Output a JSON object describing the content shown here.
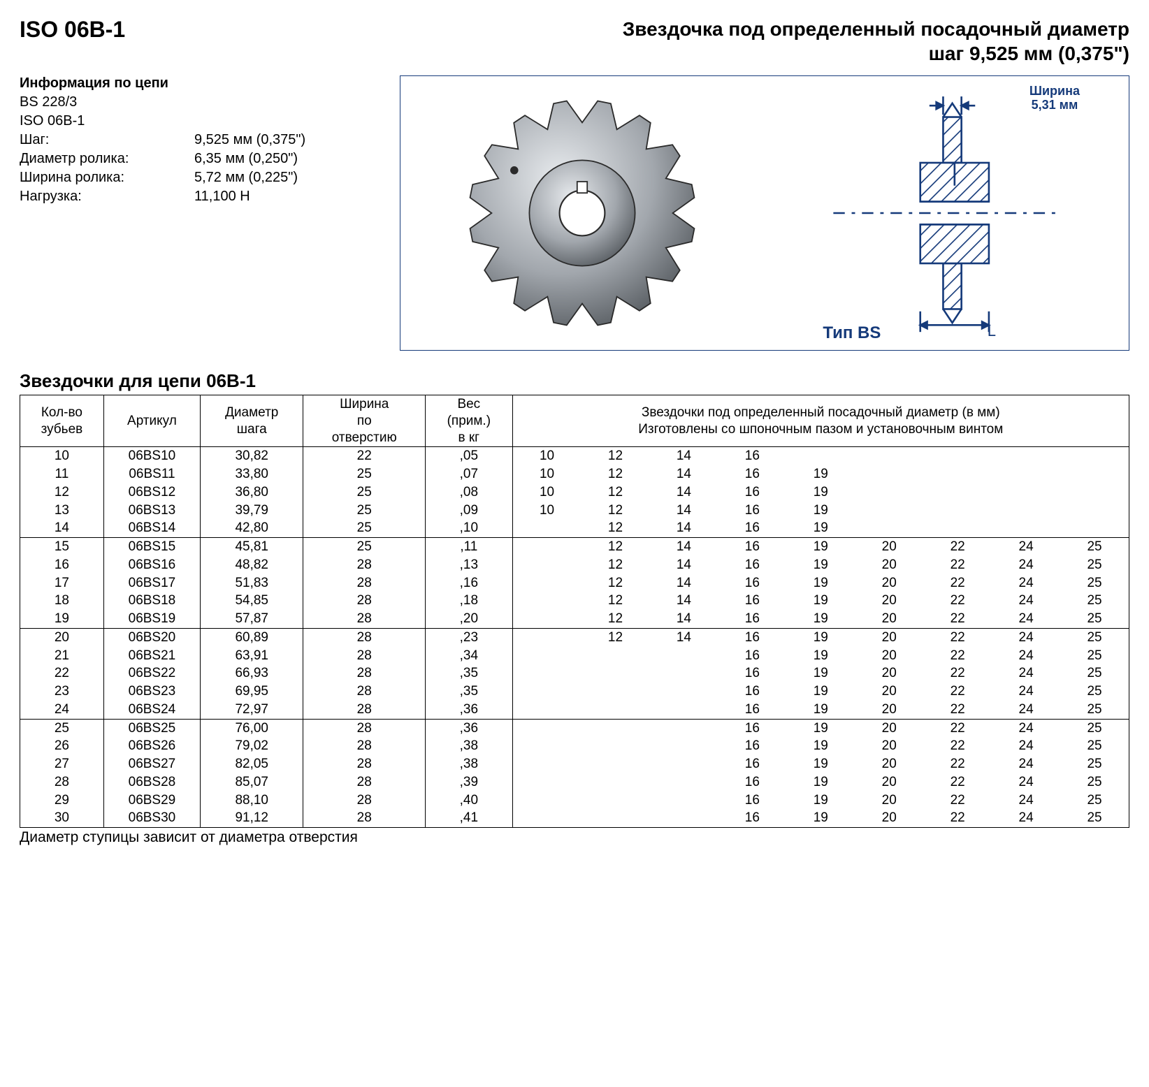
{
  "header": {
    "left": "ISO 06B-1",
    "right_line1": "Звездочка под определенный посадочный диаметр",
    "right_line2": "шаг 9,525 мм (0,375\")"
  },
  "chain_info": {
    "title": "Информация по цепи",
    "lines": [
      "BS 228/3",
      "ISO 06B-1"
    ],
    "kv": [
      {
        "k": "Шаг:",
        "v": "9,525 мм (0,375\")"
      },
      {
        "k": "Диаметр ролика:",
        "v": "6,35 мм (0,250\")"
      },
      {
        "k": "Ширина ролика:",
        "v": "5,72 мм (0,225\")"
      },
      {
        "k": "Нагрузка:",
        "v": "11,100 Н"
      }
    ]
  },
  "figure": {
    "tip": "Тип BS",
    "width_label_top": "Ширина",
    "width_label_bot": "5,31 мм",
    "L_label": "L",
    "sprocket": {
      "fill_hub": "#8a8f95",
      "fill_tooth": "#a2a7ad",
      "stroke": "#2a2a2a",
      "teeth": 16
    },
    "schematic": {
      "stroke": "#153a7a",
      "hatch": "#153a7a"
    }
  },
  "table": {
    "title": "Звездочки для цепи 06B-1",
    "columns": {
      "teeth": "Кол-во\nзубьев",
      "article": "Артикул",
      "pitch_dia": "Диаметр\nшага",
      "bore_width": "Ширина\nпо\nотверстию",
      "weight": "Вес\n(прим.)\nв кг",
      "bores_head1": "Звездочки под определенный посадочный диаметр (в мм)",
      "bores_head2": "Изготовлены со шпоночным пазом и установочным винтом"
    },
    "bore_cols": [
      "10",
      "12",
      "14",
      "16",
      "19",
      "20",
      "22",
      "24",
      "25"
    ],
    "groups": [
      [
        {
          "t": "10",
          "a": "06BS10",
          "pd": "30,82",
          "bw": "22",
          "w": ",05",
          "b": [
            "10",
            "12",
            "14",
            "16",
            "",
            "",
            "",
            "",
            ""
          ]
        },
        {
          "t": "11",
          "a": "06BS11",
          "pd": "33,80",
          "bw": "25",
          "w": ",07",
          "b": [
            "10",
            "12",
            "14",
            "16",
            "19",
            "",
            "",
            "",
            ""
          ]
        },
        {
          "t": "12",
          "a": "06BS12",
          "pd": "36,80",
          "bw": "25",
          "w": ",08",
          "b": [
            "10",
            "12",
            "14",
            "16",
            "19",
            "",
            "",
            "",
            ""
          ]
        },
        {
          "t": "13",
          "a": "06BS13",
          "pd": "39,79",
          "bw": "25",
          "w": ",09",
          "b": [
            "10",
            "12",
            "14",
            "16",
            "19",
            "",
            "",
            "",
            ""
          ]
        },
        {
          "t": "14",
          "a": "06BS14",
          "pd": "42,80",
          "bw": "25",
          "w": ",10",
          "b": [
            "",
            "12",
            "14",
            "16",
            "19",
            "",
            "",
            "",
            ""
          ]
        }
      ],
      [
        {
          "t": "15",
          "a": "06BS15",
          "pd": "45,81",
          "bw": "25",
          "w": ",11",
          "b": [
            "",
            "12",
            "14",
            "16",
            "19",
            "20",
            "22",
            "24",
            "25"
          ]
        },
        {
          "t": "16",
          "a": "06BS16",
          "pd": "48,82",
          "bw": "28",
          "w": ",13",
          "b": [
            "",
            "12",
            "14",
            "16",
            "19",
            "20",
            "22",
            "24",
            "25"
          ]
        },
        {
          "t": "17",
          "a": "06BS17",
          "pd": "51,83",
          "bw": "28",
          "w": ",16",
          "b": [
            "",
            "12",
            "14",
            "16",
            "19",
            "20",
            "22",
            "24",
            "25"
          ]
        },
        {
          "t": "18",
          "a": "06BS18",
          "pd": "54,85",
          "bw": "28",
          "w": ",18",
          "b": [
            "",
            "12",
            "14",
            "16",
            "19",
            "20",
            "22",
            "24",
            "25"
          ]
        },
        {
          "t": "19",
          "a": "06BS19",
          "pd": "57,87",
          "bw": "28",
          "w": ",20",
          "b": [
            "",
            "12",
            "14",
            "16",
            "19",
            "20",
            "22",
            "24",
            "25"
          ]
        }
      ],
      [
        {
          "t": "20",
          "a": "06BS20",
          "pd": "60,89",
          "bw": "28",
          "w": ",23",
          "b": [
            "",
            "12",
            "14",
            "16",
            "19",
            "20",
            "22",
            "24",
            "25"
          ]
        },
        {
          "t": "21",
          "a": "06BS21",
          "pd": "63,91",
          "bw": "28",
          "w": ",34",
          "b": [
            "",
            "",
            "",
            "16",
            "19",
            "20",
            "22",
            "24",
            "25"
          ]
        },
        {
          "t": "22",
          "a": "06BS22",
          "pd": "66,93",
          "bw": "28",
          "w": ",35",
          "b": [
            "",
            "",
            "",
            "16",
            "19",
            "20",
            "22",
            "24",
            "25"
          ]
        },
        {
          "t": "23",
          "a": "06BS23",
          "pd": "69,95",
          "bw": "28",
          "w": ",35",
          "b": [
            "",
            "",
            "",
            "16",
            "19",
            "20",
            "22",
            "24",
            "25"
          ]
        },
        {
          "t": "24",
          "a": "06BS24",
          "pd": "72,97",
          "bw": "28",
          "w": ",36",
          "b": [
            "",
            "",
            "",
            "16",
            "19",
            "20",
            "22",
            "24",
            "25"
          ]
        }
      ],
      [
        {
          "t": "25",
          "a": "06BS25",
          "pd": "76,00",
          "bw": "28",
          "w": ",36",
          "b": [
            "",
            "",
            "",
            "16",
            "19",
            "20",
            "22",
            "24",
            "25"
          ]
        },
        {
          "t": "26",
          "a": "06BS26",
          "pd": "79,02",
          "bw": "28",
          "w": ",38",
          "b": [
            "",
            "",
            "",
            "16",
            "19",
            "20",
            "22",
            "24",
            "25"
          ]
        },
        {
          "t": "27",
          "a": "06BS27",
          "pd": "82,05",
          "bw": "28",
          "w": ",38",
          "b": [
            "",
            "",
            "",
            "16",
            "19",
            "20",
            "22",
            "24",
            "25"
          ]
        },
        {
          "t": "28",
          "a": "06BS28",
          "pd": "85,07",
          "bw": "28",
          "w": ",39",
          "b": [
            "",
            "",
            "",
            "16",
            "19",
            "20",
            "22",
            "24",
            "25"
          ]
        },
        {
          "t": "29",
          "a": "06BS29",
          "pd": "88,10",
          "bw": "28",
          "w": ",40",
          "b": [
            "",
            "",
            "",
            "16",
            "19",
            "20",
            "22",
            "24",
            "25"
          ]
        },
        {
          "t": "30",
          "a": "06BS30",
          "pd": "91,12",
          "bw": "28",
          "w": ",41",
          "b": [
            "",
            "",
            "",
            "16",
            "19",
            "20",
            "22",
            "24",
            "25"
          ]
        }
      ]
    ],
    "footnote": "Диаметр ступицы зависит от диаметра отверстия"
  }
}
